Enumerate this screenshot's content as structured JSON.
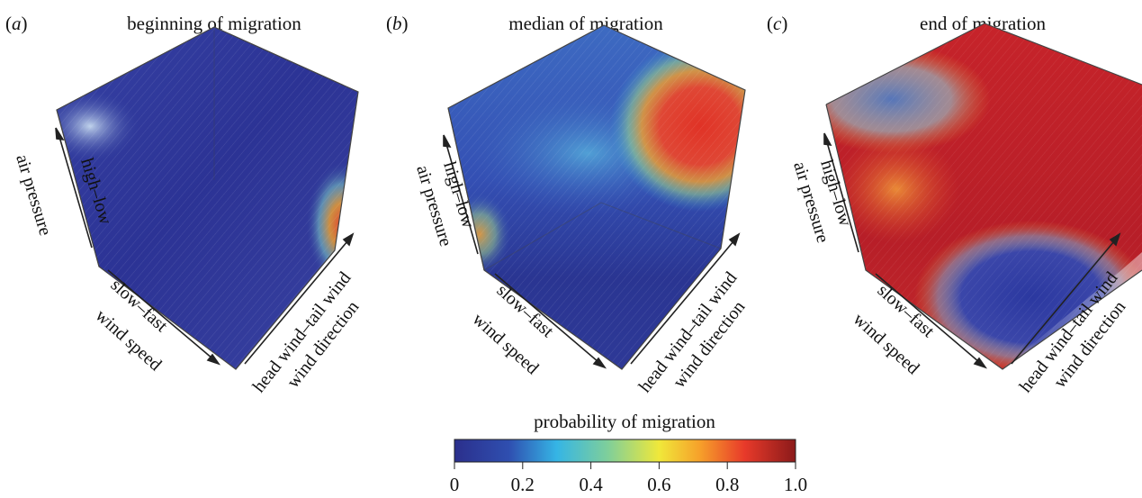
{
  "chart_data": {
    "type": "heatmap",
    "subtype": "3d-volume-probability-cube",
    "axes": {
      "x": {
        "direction": "slow–fast",
        "name": "wind speed"
      },
      "y": {
        "direction": "head wind–tail wind",
        "name": "wind direction"
      },
      "z": {
        "direction": "high–low",
        "name": "air pressure"
      }
    },
    "panels": [
      {
        "letter": "a",
        "title": "beginning of migration",
        "high_probability_region": "small area at fast wind speed, tail wind, low air pressure corner",
        "dominant_level": 0.05
      },
      {
        "letter": "b",
        "title": "median of migration",
        "high_probability_region": "top-right corner: tail wind, low air pressure",
        "dominant_level": 0.3
      },
      {
        "letter": "c",
        "title": "end of migration",
        "high_probability_region": "most of the cube except fast wind speed with head wind",
        "dominant_level": 0.8
      }
    ],
    "colorbar": {
      "label": "probability of migration",
      "range": [
        0,
        1
      ],
      "ticks": [
        "0",
        "0.2",
        "0.4",
        "0.6",
        "0.8",
        "1.0"
      ],
      "colors": [
        "#2b2f8c",
        "#2f4fb0",
        "#35b5e5",
        "#7fcf9a",
        "#f0e83a",
        "#f6a02a",
        "#e83a2a",
        "#8b1a1a"
      ]
    }
  },
  "labels": {
    "panel_a_letter": "(a)",
    "panel_b_letter": "(b)",
    "panel_c_letter": "(c)",
    "panel_a_title": "beginning of migration",
    "panel_b_title": "median of migration",
    "panel_c_title": "end of migration",
    "pressure_range": "high–low",
    "pressure_name": "air pressure",
    "speed_range": "slow–fast",
    "speed_name": "wind speed",
    "direction_range": "head wind–tail wind",
    "direction_name": "wind direction"
  }
}
